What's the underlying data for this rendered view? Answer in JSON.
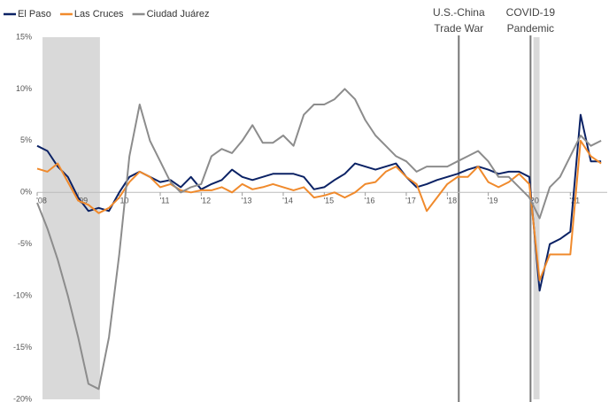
{
  "chart_data": {
    "type": "line",
    "x": [
      2008,
      2008.25,
      2008.5,
      2008.75,
      2009,
      2009.25,
      2009.5,
      2009.75,
      2010,
      2010.25,
      2010.5,
      2010.75,
      2011,
      2011.25,
      2011.5,
      2011.75,
      2012,
      2012.25,
      2012.5,
      2012.75,
      2013,
      2013.25,
      2013.5,
      2013.75,
      2014,
      2014.25,
      2014.5,
      2014.75,
      2015,
      2015.25,
      2015.5,
      2015.75,
      2016,
      2016.25,
      2016.5,
      2016.75,
      2017,
      2017.25,
      2017.5,
      2017.75,
      2018,
      2018.25,
      2018.5,
      2018.75,
      2019,
      2019.25,
      2019.5,
      2019.75,
      2020,
      2020.25,
      2020.5,
      2020.75,
      2021,
      2021.25,
      2021.5,
      2021.75
    ],
    "series": [
      {
        "name": "El Paso",
        "color": "#0b2265",
        "values": [
          4.5,
          4.0,
          2.5,
          1.5,
          -0.5,
          -1.8,
          -1.5,
          -1.8,
          0.0,
          1.5,
          2.0,
          1.5,
          1.0,
          1.2,
          0.5,
          1.5,
          0.3,
          0.8,
          1.2,
          2.2,
          1.5,
          1.2,
          1.5,
          1.8,
          1.8,
          1.8,
          1.5,
          0.3,
          0.5,
          1.2,
          1.8,
          2.8,
          2.5,
          2.2,
          2.5,
          2.8,
          1.5,
          0.5,
          0.8,
          1.2,
          1.5,
          1.8,
          2.2,
          2.5,
          2.2,
          1.8,
          2.0,
          2.0,
          1.5,
          -9.5,
          -5.0,
          -4.5,
          -3.8,
          7.5,
          3.0,
          3.0
        ]
      },
      {
        "name": "Las Cruces",
        "color": "#f08a2c",
        "values": [
          2.3,
          2.0,
          2.8,
          1.0,
          -0.8,
          -1.2,
          -2.0,
          -1.5,
          -0.5,
          1.0,
          2.0,
          1.5,
          0.5,
          0.8,
          0.2,
          0.0,
          0.2,
          0.2,
          0.5,
          0.0,
          0.8,
          0.3,
          0.5,
          0.8,
          0.5,
          0.2,
          0.5,
          -0.5,
          -0.3,
          0.0,
          -0.5,
          0.0,
          0.8,
          1.0,
          2.0,
          2.5,
          1.5,
          0.8,
          -1.8,
          -0.5,
          0.8,
          1.5,
          1.5,
          2.5,
          1.0,
          0.5,
          1.0,
          1.8,
          0.8,
          -8.5,
          -6.0,
          -6.0,
          -6.0,
          5.0,
          3.5,
          2.8
        ]
      },
      {
        "name": "Ciudad Juárez",
        "color": "#8c8c8c",
        "values": [
          -1.0,
          -3.5,
          -6.5,
          -10,
          -14,
          -18.5,
          -19,
          -14,
          -6,
          3.5,
          8.5,
          5.0,
          3.0,
          1.0,
          0.0,
          0.5,
          0.8,
          3.5,
          4.2,
          3.8,
          5.0,
          6.5,
          4.8,
          4.8,
          5.5,
          4.5,
          7.5,
          8.5,
          8.5,
          9.0,
          10.0,
          9.0,
          7.0,
          5.5,
          4.5,
          3.5,
          3.0,
          2.0,
          2.5,
          2.5,
          2.5,
          3.0,
          3.5,
          4.0,
          3.0,
          1.5,
          1.5,
          0.5,
          -0.5,
          -2.5,
          0.5,
          1.5,
          3.5,
          5.5,
          4.5,
          5.0
        ]
      }
    ],
    "xlim": [
      2008,
      2021.9
    ],
    "xticks": [
      {
        "value": 2008,
        "label": "'08"
      },
      {
        "value": 2009,
        "label": "'09"
      },
      {
        "value": 2010,
        "label": "'10"
      },
      {
        "value": 2011,
        "label": "'11"
      },
      {
        "value": 2012,
        "label": "'12"
      },
      {
        "value": 2013,
        "label": "'13"
      },
      {
        "value": 2014,
        "label": "'14"
      },
      {
        "value": 2015,
        "label": "'15"
      },
      {
        "value": 2016,
        "label": "'16"
      },
      {
        "value": 2017,
        "label": "'17"
      },
      {
        "value": 2018,
        "label": "'18"
      },
      {
        "value": 2019,
        "label": "'19"
      },
      {
        "value": 2020,
        "label": "'20"
      },
      {
        "value": 2021,
        "label": "'21"
      }
    ],
    "ylim": [
      -20,
      15
    ],
    "yticks": [
      {
        "value": 15,
        "label": "15%"
      },
      {
        "value": 10,
        "label": "10%"
      },
      {
        "value": 5,
        "label": "5%"
      },
      {
        "value": 0,
        "label": "0%"
      },
      {
        "value": -5,
        "label": "-5%"
      },
      {
        "value": -10,
        "label": "-10%"
      },
      {
        "value": -15,
        "label": "-15%"
      },
      {
        "value": -20,
        "label": "-20%"
      }
    ],
    "shaded": [
      [
        2008.13,
        2009.53
      ],
      [
        2020.1,
        2020.25
      ]
    ],
    "annotations": [
      {
        "lines": [
          "U.S.-China",
          "Trade War"
        ],
        "x": 2018.28
      },
      {
        "lines": [
          "COVID-19",
          "Pandemic"
        ],
        "x": 2020.03
      }
    ],
    "legend": "top-left"
  }
}
